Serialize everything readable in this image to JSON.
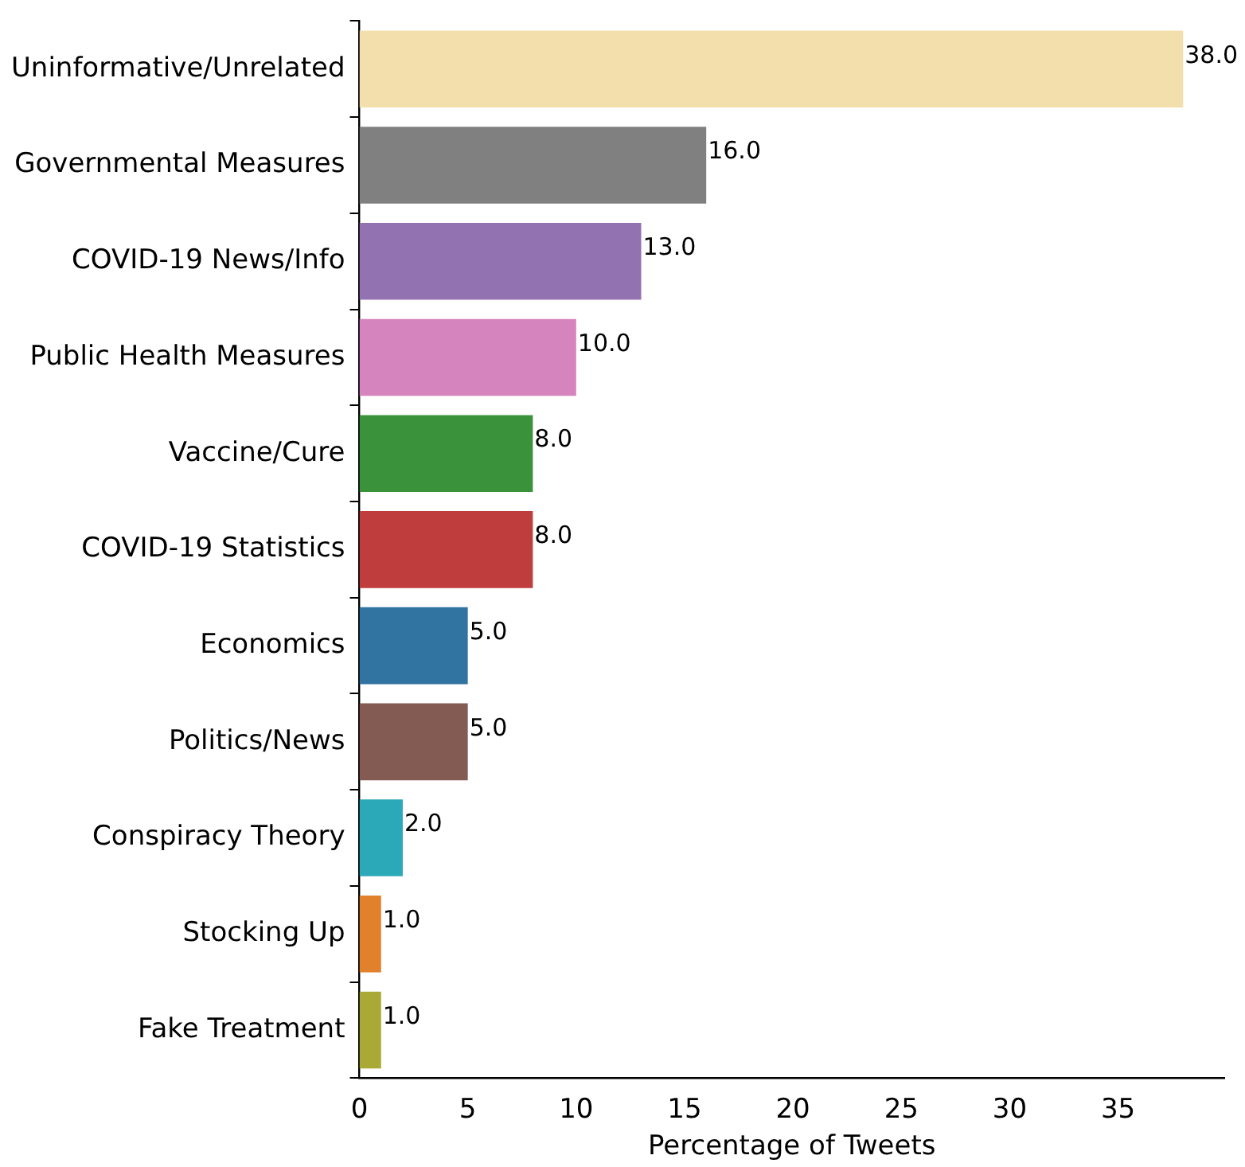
{
  "chart_data": {
    "type": "bar",
    "orientation": "horizontal",
    "xlabel": "Percentage of Tweets",
    "categories": [
      "Uninformative/Unrelated",
      "Governmental Measures",
      "COVID-19 News/Info",
      "Public Health Measures",
      "Vaccine/Cure",
      "COVID-19 Statistics",
      "Economics",
      "Politics/News",
      "Conspiracy Theory",
      "Stocking Up",
      "Fake Treatment"
    ],
    "values": [
      38.0,
      16.0,
      13.0,
      10.0,
      8.0,
      8.0,
      5.0,
      5.0,
      2.0,
      1.0,
      1.0
    ],
    "colors": [
      "#f3dfac",
      "#808080",
      "#9372b2",
      "#d684bd",
      "#3a923a",
      "#c03d3e",
      "#3274a1",
      "#845b53",
      "#2ca9b8",
      "#e1812c",
      "#a9aa35"
    ],
    "value_labels": [
      "38.0",
      "16.0",
      "13.0",
      "10.0",
      "8.0",
      "8.0",
      "5.0",
      "5.0",
      "2.0",
      "1.0",
      "1.0"
    ],
    "xlim": [
      0,
      39.9
    ],
    "xticks": [
      0,
      5,
      10,
      15,
      20,
      25,
      30,
      35
    ],
    "grid": false,
    "legend": false
  }
}
